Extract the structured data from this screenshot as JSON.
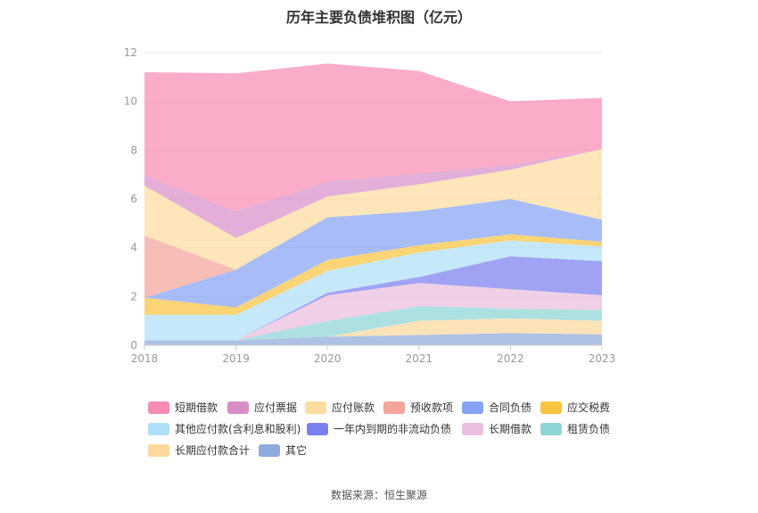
{
  "source_label": "数据来源：恒生聚源",
  "chart_data": {
    "type": "area",
    "stacked": true,
    "title": "历年主要负债堆积图（亿元）",
    "x": [
      "2018",
      "2019",
      "2020",
      "2021",
      "2022",
      "2023"
    ],
    "ylim": [
      0,
      12
    ],
    "yticks": [
      "0",
      "2",
      "4",
      "6",
      "8",
      "10",
      "12"
    ],
    "grid": true,
    "legend_position": "bottom",
    "series": [
      {
        "name": "其它",
        "color": "#8faadc",
        "values": [
          0.2,
          0.2,
          0.35,
          0.42,
          0.5,
          0.45
        ]
      },
      {
        "name": "长期应付款合计",
        "color": "#ffd89c",
        "values": [
          0.0,
          0.0,
          0.0,
          0.58,
          0.6,
          0.55
        ]
      },
      {
        "name": "租赁负债",
        "color": "#8ed6d6",
        "values": [
          0.0,
          0.0,
          0.65,
          0.6,
          0.4,
          0.45
        ]
      },
      {
        "name": "长期借款",
        "color": "#eabedd",
        "values": [
          0.0,
          0.0,
          1.05,
          0.95,
          0.8,
          0.6
        ]
      },
      {
        "name": "一年内到期的非流动负债",
        "color": "#7b80f0",
        "values": [
          0.0,
          0.0,
          0.1,
          0.25,
          1.35,
          1.4
        ]
      },
      {
        "name": "其他应付款(含利息和股利)",
        "color": "#aee0f8",
        "values": [
          1.05,
          1.05,
          0.9,
          1.0,
          0.65,
          0.6
        ]
      },
      {
        "name": "应交税费",
        "color": "#f9c440",
        "values": [
          0.7,
          0.3,
          0.45,
          0.3,
          0.25,
          0.2
        ]
      },
      {
        "name": "合同负债",
        "color": "#86a3f5",
        "values": [
          0.0,
          1.55,
          1.75,
          1.4,
          1.45,
          0.9
        ]
      },
      {
        "name": "预收款项",
        "color": "#f4a59b",
        "values": [
          2.55,
          0.0,
          0.0,
          0.0,
          0.0,
          0.0
        ]
      },
      {
        "name": "应付账款",
        "color": "#fddca0",
        "values": [
          2.05,
          1.3,
          0.85,
          1.1,
          1.2,
          2.9
        ]
      },
      {
        "name": "应付票据",
        "color": "#d88fc8",
        "values": [
          0.4,
          1.1,
          0.6,
          0.45,
          0.2,
          0.0
        ]
      },
      {
        "name": "短期借款",
        "color": "#f98cb3",
        "values": [
          4.25,
          5.65,
          4.85,
          4.2,
          2.6,
          2.1
        ]
      }
    ],
    "legend_order": [
      "短期借款",
      "应付票据",
      "应付账款",
      "预收款项",
      "合同负债",
      "应交税费",
      "其他应付款(含利息和股利)",
      "一年内到期的非流动负债",
      "长期借款",
      "租赁负债",
      "长期应付款合计",
      "其它"
    ]
  }
}
